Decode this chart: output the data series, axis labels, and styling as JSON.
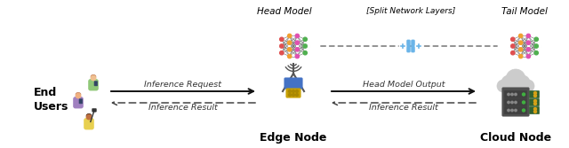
{
  "figsize": [
    6.4,
    1.67
  ],
  "dpi": 100,
  "bg_color": "#ffffff",
  "labels": {
    "end_users": "End\nUsers",
    "edge_node": "Edge Node",
    "cloud_node": "Cloud Node",
    "head_model": "Head Model",
    "tail_model": "Tail Model",
    "split_layers": "[Split Network Layers]",
    "inference_request": "Inference Request",
    "inference_result_left": "Inference Result",
    "head_model_output": "Head Model Output",
    "inference_result_right": "Inference Result"
  },
  "text_color": "#000000",
  "italic_color": "#333333",
  "nn_layers": [
    3,
    4,
    4,
    3
  ],
  "nn_layer_colors": [
    "#e05050",
    "#f0a030",
    "#e050b0",
    "#50b050"
  ],
  "nn_conn_color": "#555555",
  "nn_node_edge": "#333333",
  "split_color": "#6ab4e8",
  "arrow_solid_color": "#111111",
  "arrow_dashed_color": "#444444",
  "person_colors": [
    {
      "shirt": "#90c878",
      "skin": "#f0c090",
      "hair": "#c07850"
    },
    {
      "shirt": "#a080c0",
      "skin": "#f0b080",
      "hair": "#c08060"
    },
    {
      "shirt": "#e8d050",
      "skin": "#c07040",
      "hair": "#301808"
    }
  ],
  "tower_color": "#555555",
  "tower_chip_color": "#4472c4",
  "tower_cpu_color": "#c8a000",
  "server_color": "#606060",
  "server_green": "#40b040",
  "gpu_color": "#306030",
  "cloud_color": "#cccccc"
}
